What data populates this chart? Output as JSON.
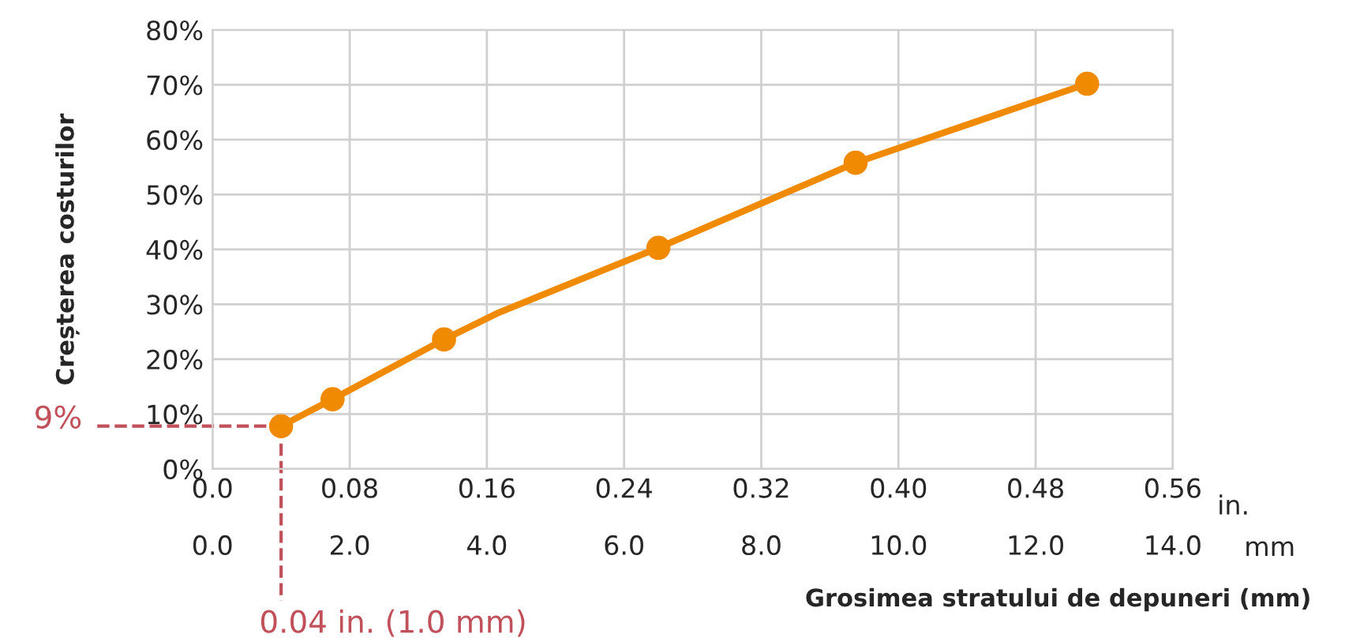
{
  "chart_data": {
    "type": "line",
    "ylabel": "Creșterea costurilor",
    "xlabel": "Grosimea stratului de depuneri (mm)",
    "series": [
      {
        "color": "#f08a00",
        "marker": "none",
        "x": [
          0.04,
          0.07,
          0.135,
          0.167,
          0.26,
          0.375,
          0.51
        ],
        "values": [
          7.8,
          12.7,
          23.6,
          28.5,
          40.3,
          55.8,
          70.2
        ]
      },
      {
        "type": "scatter",
        "color": "#f08a00",
        "marker": "circle",
        "x": [
          0.04,
          0.07,
          0.135,
          0.26,
          0.375,
          0.51
        ],
        "values": [
          7.8,
          12.7,
          23.6,
          40.3,
          55.8,
          70.2
        ]
      }
    ],
    "xlim": [
      0,
      0.56
    ],
    "xticks": [
      {
        "value": 0,
        "label": "0.0"
      },
      0.08,
      0.16,
      0.24,
      0.32,
      {
        "value": 0.4,
        "label": "0.40"
      },
      0.48,
      0.56
    ],
    "x2lim": [
      0,
      14
    ],
    "x2ticks": [
      {
        "value": 0,
        "label": "0.0"
      },
      {
        "value": 2,
        "label": "2.0"
      },
      {
        "value": 4,
        "label": "4.0"
      },
      {
        "value": 6,
        "label": "6.0"
      },
      {
        "value": 8,
        "label": "8.0"
      },
      {
        "value": 10,
        "label": "10.0"
      },
      {
        "value": 12,
        "label": "12.0"
      },
      {
        "value": 14,
        "label": "14.0"
      }
    ],
    "ylim": [
      0,
      80
    ],
    "yticks": [
      {
        "value": 0,
        "label": "0%"
      },
      {
        "value": 10,
        "label": "10%"
      },
      {
        "value": 20,
        "label": "20%"
      },
      {
        "value": 30,
        "label": "30%"
      },
      {
        "value": 40,
        "label": "40%"
      },
      {
        "value": 50,
        "label": "50%"
      },
      {
        "value": 60,
        "label": "60%"
      },
      {
        "value": 70,
        "label": "70%"
      },
      {
        "value": 80,
        "label": "80%"
      }
    ],
    "grid": true,
    "annotations": [
      {
        "text": "9%",
        "x": 0.04,
        "y": 7.8
      },
      {
        "text": "0.04 in. (1.0 mm)",
        "x": 0.04,
        "y": 7.8
      },
      "in.",
      "mm"
    ]
  }
}
